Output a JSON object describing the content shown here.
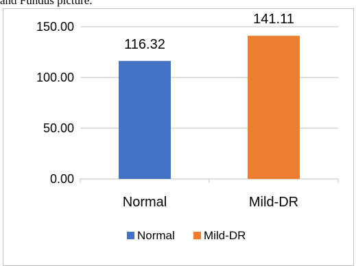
{
  "caption": "and Fundus picture.",
  "chart_data": {
    "type": "bar",
    "categories": [
      "Normal",
      "Mild-DR"
    ],
    "values": [
      116.32,
      141.11
    ],
    "data_labels": [
      "116.32",
      "141.11"
    ],
    "colors": [
      "#4472c4",
      "#ed7d31"
    ],
    "ylim": [
      0,
      150
    ],
    "yticks": [
      0,
      50,
      100,
      150
    ],
    "ytick_labels": [
      "0.00",
      "50.00",
      "100.00",
      "150.00"
    ],
    "grid": true,
    "legend": {
      "placement": "bottom",
      "entries": [
        "Normal",
        "Mild-DR"
      ]
    },
    "title": "",
    "xlabel": "",
    "ylabel": ""
  }
}
